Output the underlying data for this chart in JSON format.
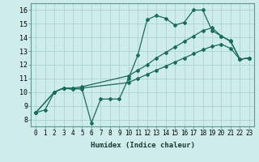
{
  "line1_x": [
    0,
    1,
    2,
    3,
    4,
    5,
    6,
    7,
    8,
    9,
    10,
    11,
    12,
    13,
    14,
    15,
    16,
    17,
    18,
    19,
    20,
    21,
    22,
    23
  ],
  "line1_y": [
    8.5,
    8.7,
    10.0,
    10.3,
    10.3,
    10.2,
    7.75,
    9.5,
    9.5,
    9.5,
    11.0,
    12.7,
    15.3,
    15.6,
    15.4,
    14.9,
    15.1,
    16.0,
    16.0,
    14.5,
    14.1,
    13.7,
    12.4,
    12.5
  ],
  "line2_x": [
    0,
    2,
    3,
    4,
    5,
    10,
    11,
    12,
    13,
    14,
    15,
    16,
    17,
    18,
    19,
    20,
    21,
    22,
    23
  ],
  "line2_y": [
    8.5,
    10.0,
    10.3,
    10.3,
    10.4,
    11.2,
    11.6,
    12.0,
    12.5,
    12.9,
    13.3,
    13.7,
    14.1,
    14.5,
    14.7,
    14.1,
    13.75,
    12.4,
    12.5
  ],
  "line3_x": [
    0,
    2,
    3,
    4,
    5,
    10,
    11,
    12,
    13,
    14,
    15,
    16,
    17,
    18,
    19,
    20,
    21,
    22,
    23
  ],
  "line3_y": [
    8.5,
    10.0,
    10.3,
    10.2,
    10.3,
    10.7,
    11.0,
    11.3,
    11.6,
    11.9,
    12.2,
    12.5,
    12.8,
    13.1,
    13.35,
    13.5,
    13.2,
    12.4,
    12.5
  ],
  "color": "#1a6b5a",
  "bg_color": "#ceecea",
  "grid_color": "#aad4d0",
  "xlabel": "Humidex (Indice chaleur)",
  "xlim": [
    -0.5,
    23.5
  ],
  "ylim": [
    7.5,
    16.5
  ],
  "xticks": [
    0,
    1,
    2,
    3,
    4,
    5,
    6,
    7,
    8,
    9,
    10,
    11,
    12,
    13,
    14,
    15,
    16,
    17,
    18,
    19,
    20,
    21,
    22,
    23
  ],
  "yticks": [
    8,
    9,
    10,
    11,
    12,
    13,
    14,
    15,
    16
  ],
  "xlabel_fontsize": 6.5,
  "tick_fontsize": 5.5,
  "ytick_fontsize": 6.0
}
